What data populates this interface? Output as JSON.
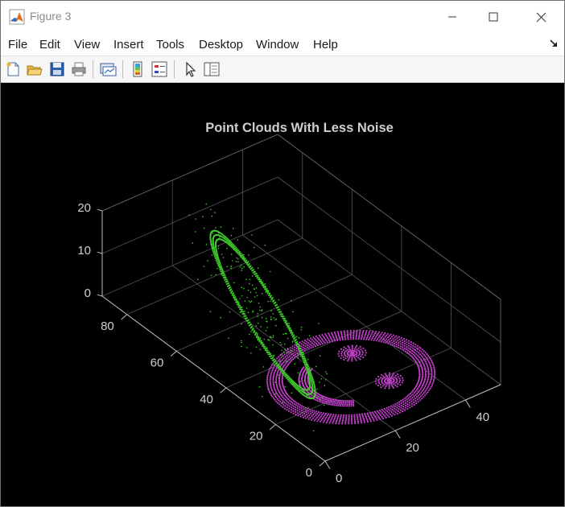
{
  "window": {
    "title": "Figure 3",
    "controls": {
      "minimize": "minimize",
      "maximize": "maximize",
      "close": "close"
    }
  },
  "menu": [
    "File",
    "Edit",
    "View",
    "Insert",
    "Tools",
    "Desktop",
    "Window",
    "Help"
  ],
  "toolbar": {
    "buttons": [
      "new-figure-icon",
      "open-file-icon",
      "save-icon",
      "print-icon",
      "link-plot-icon",
      "insert-colorbar-icon",
      "insert-legend-icon",
      "pointer-icon",
      "property-editor-icon"
    ]
  },
  "colors": {
    "background": "#000000",
    "cloud1": "#3fcf2a",
    "cloud2": "#c040c8",
    "axis_text": "#d0d0d0",
    "grid": "#555555"
  },
  "chart_data": {
    "type": "scatter",
    "title": "Point Clouds With Less Noise",
    "xlabel": "",
    "ylabel": "",
    "zlabel": "",
    "xlim": [
      0,
      50
    ],
    "ylim": [
      0,
      90
    ],
    "zlim": [
      0,
      20
    ],
    "xticks": [
      "0",
      "20",
      "40"
    ],
    "yticks": [
      "0",
      "20",
      "40",
      "60",
      "80"
    ],
    "zticks": [
      "0",
      "10",
      "20"
    ],
    "grid": true,
    "view": "3d",
    "series": [
      {
        "color": "#3fcf2a",
        "shape": "tilted ring with scattered noise points",
        "x": [
          5,
          25
        ],
        "y": [
          20,
          70
        ],
        "z": [
          0,
          20
        ]
      },
      {
        "color": "#c040c8",
        "shape": "flat face pattern (outer ring, two eyes, smile) at z = 0",
        "x": [
          5,
          45
        ],
        "y": [
          5,
          45
        ],
        "z": [
          0,
          0
        ]
      }
    ]
  }
}
